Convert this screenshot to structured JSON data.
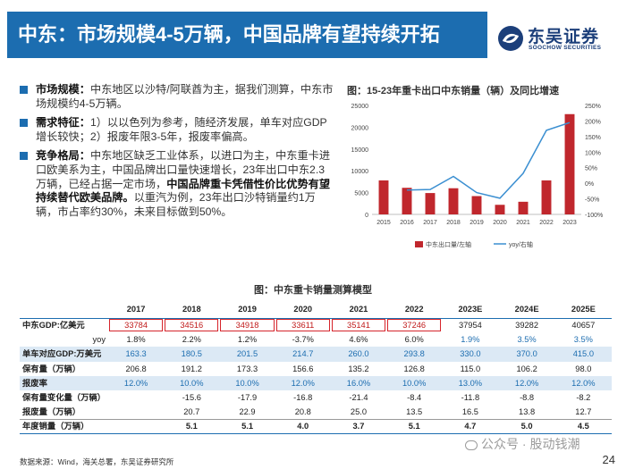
{
  "header": {
    "title": "中东：市场规模4-5万辆，中国品牌有望持续开拓",
    "logo_cn": "东吴证券",
    "logo_en": "SOOCHOW SECURITIES"
  },
  "bullets": [
    {
      "label": "市场规模：",
      "text": "中东地区以沙特/阿联酋为主，据我们测算，中东市场规模约4-5万辆。",
      "highlight": "",
      "tail": ""
    },
    {
      "label": "需求特征：",
      "text": "1）以以色列为参考，随经济发展，单车对应GDP增长较快；2）报废年限3-5年，报废率偏高。",
      "highlight": "",
      "tail": ""
    },
    {
      "label": "竞争格局：",
      "text": "中东地区缺乏工业体系，以进口为主，中东重卡进口欧美系为主，中国品牌出口量快速增长，23年出口中东2.3万辆，已经占据一定市场，",
      "highlight": "中国品牌重卡凭借性价比优势有望持续替代欧美品牌。",
      "tail": "以重汽为例，23年出口沙特销量约1万辆，市占率约30%，未来目标做到50%。"
    }
  ],
  "chart_title": "图：15-23年重卡出口中东销量（辆）及同比增速",
  "chart_data": {
    "type": "bar",
    "categories": [
      "2015",
      "2016",
      "2017",
      "2018",
      "2019",
      "2020",
      "2021",
      "2022",
      "2023"
    ],
    "series": [
      {
        "name": "中东出口量/左轴",
        "type": "bar",
        "axis": "left",
        "values": [
          7800,
          6100,
          4900,
          6000,
          4200,
          2200,
          2900,
          7800,
          23000
        ],
        "color": "#c0272d"
      },
      {
        "name": "yoy/右轴",
        "type": "line",
        "axis": "right",
        "values": [
          null,
          -22,
          -20,
          22,
          -30,
          -48,
          32,
          170,
          195
        ],
        "color": "#3b8fd1"
      }
    ],
    "ylim_left": [
      0,
      25000
    ],
    "yticks_left": [
      "0",
      "5000",
      "10000",
      "15000",
      "20000",
      "25000"
    ],
    "ylim_right": [
      -100,
      250
    ],
    "yticks_right": [
      "-100%",
      "-50%",
      "0%",
      "50%",
      "100%",
      "150%",
      "200%",
      "250%"
    ],
    "legend": "bottom"
  },
  "table": {
    "title": "图：中东重卡销量测算模型",
    "columns": [
      "",
      "2017",
      "2018",
      "2019",
      "2020",
      "2021",
      "2022",
      "2023E",
      "2024E",
      "2025E"
    ],
    "rows": [
      {
        "label": "中东GDP:亿美元",
        "values": [
          "33784",
          "34516",
          "34918",
          "33611",
          "35141",
          "37246",
          "37954",
          "39282",
          "40657"
        ],
        "style": "normal"
      },
      {
        "label": "yoy",
        "values": [
          "1.8%",
          "2.2%",
          "1.2%",
          "-3.7%",
          "4.6%",
          "6.0%",
          "1.9%",
          "3.5%",
          "3.5%"
        ],
        "style": "yoy"
      },
      {
        "label": "单车对应GDP:万美元",
        "values": [
          "163.3",
          "180.5",
          "201.5",
          "214.7",
          "260.0",
          "293.8",
          "330.0",
          "370.0",
          "415.0"
        ],
        "style": "blue"
      },
      {
        "label": "保有量（万辆）",
        "values": [
          "206.8",
          "191.2",
          "173.3",
          "156.6",
          "135.2",
          "126.8",
          "115.0",
          "106.2",
          "98.0"
        ],
        "style": "normal"
      },
      {
        "label": "报废率",
        "values": [
          "12.0%",
          "10.0%",
          "10.0%",
          "12.0%",
          "16.0%",
          "10.0%",
          "13.0%",
          "12.0%",
          "12.0%"
        ],
        "style": "blue"
      },
      {
        "label": "保有量变化量（万辆）",
        "values": [
          "",
          "-15.6",
          "-17.9",
          "-16.8",
          "-21.4",
          "-8.4",
          "-11.8",
          "-8.8",
          "-8.2"
        ],
        "style": "normal"
      },
      {
        "label": "报废量（万辆）",
        "values": [
          "",
          "20.7",
          "22.9",
          "20.8",
          "25.0",
          "13.5",
          "16.5",
          "13.8",
          "12.7"
        ],
        "style": "normal"
      },
      {
        "label": "年度销量（万辆）",
        "values": [
          "",
          "5.1",
          "5.1",
          "4.0",
          "3.7",
          "5.1",
          "4.7",
          "5.0",
          "4.5"
        ],
        "style": "total"
      }
    ]
  },
  "footer": {
    "source": "数据来源：Wind，海关总署，东吴证券研究所",
    "page": "24",
    "watermark": "公众号 · 股动钱潮"
  },
  "colors": {
    "brand_blue": "#1c6db0",
    "bar_red": "#c0272d",
    "line_blue": "#3b8fd1"
  }
}
